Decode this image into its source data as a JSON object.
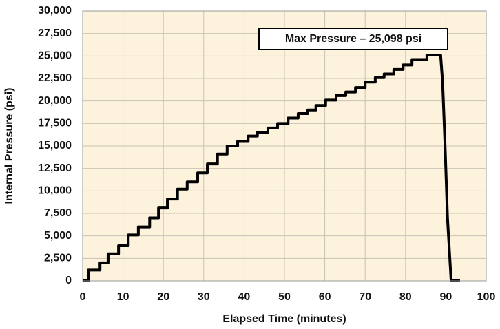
{
  "chart_data": {
    "type": "line",
    "xlabel": "Elapsed Time (minutes)",
    "ylabel": "Internal Pressure (psi)",
    "annotation": "Max Pressure – 25,098 psi",
    "x": [
      0,
      1.4,
      1.4,
      4.3,
      4.3,
      6.3,
      6.3,
      8.9,
      8.9,
      11.3,
      11.3,
      13.8,
      13.8,
      16.6,
      16.6,
      18.8,
      18.8,
      21.0,
      21.0,
      23.5,
      23.5,
      25.9,
      25.9,
      28.5,
      28.5,
      30.9,
      30.9,
      33.4,
      33.4,
      35.8,
      35.8,
      38.4,
      38.4,
      41.0,
      41.0,
      43.3,
      43.3,
      45.9,
      45.9,
      48.3,
      48.3,
      50.9,
      50.9,
      53.4,
      53.4,
      55.8,
      55.8,
      57.8,
      57.8,
      60.2,
      60.2,
      62.8,
      62.8,
      65.2,
      65.2,
      67.6,
      67.6,
      70.0,
      70.0,
      72.5,
      72.5,
      74.7,
      74.7,
      77.1,
      77.1,
      79.4,
      79.4,
      81.6,
      81.6,
      85.3,
      85.3,
      88.7,
      89.2,
      89.8,
      90.4,
      91.3,
      93.5
    ],
    "values": [
      0,
      0,
      1200,
      1200,
      2000,
      2000,
      3000,
      3000,
      3900,
      3900,
      5100,
      5100,
      6000,
      6000,
      7000,
      7000,
      8100,
      8100,
      9100,
      9100,
      10200,
      10200,
      11000,
      11000,
      12000,
      12000,
      13000,
      13000,
      14100,
      14100,
      15000,
      15000,
      15500,
      15500,
      16100,
      16100,
      16500,
      16500,
      17000,
      17000,
      17500,
      17500,
      18100,
      18100,
      18600,
      18600,
      19000,
      19000,
      19500,
      19500,
      20100,
      20100,
      20600,
      20600,
      21000,
      21000,
      21500,
      21500,
      22100,
      22100,
      22600,
      22600,
      23000,
      23000,
      23500,
      23500,
      24000,
      24000,
      24600,
      24600,
      25098,
      25098,
      22000,
      15000,
      7000,
      0,
      0
    ],
    "color": "#000000",
    "xlim": [
      0,
      100
    ],
    "xticks": [
      0,
      10,
      20,
      30,
      40,
      50,
      60,
      70,
      80,
      90,
      100
    ],
    "ylim": [
      0,
      30000
    ],
    "yticks": [
      0,
      {
        "value": 2500,
        "label": "2,500"
      },
      {
        "value": 5000,
        "label": "5,000"
      },
      {
        "value": 7500,
        "label": "7,500"
      },
      {
        "value": 10000,
        "label": "10,000"
      },
      {
        "value": 12500,
        "label": "12,500"
      },
      {
        "value": 15000,
        "label": "15,000"
      },
      {
        "value": 17500,
        "label": "17,500"
      },
      {
        "value": 20000,
        "label": "20,000"
      },
      {
        "value": 22500,
        "label": "22,500"
      },
      {
        "value": 25000,
        "label": "25,000"
      },
      {
        "value": 27500,
        "label": "27,500"
      },
      {
        "value": 30000,
        "label": "30,000"
      }
    ],
    "grid": true
  }
}
